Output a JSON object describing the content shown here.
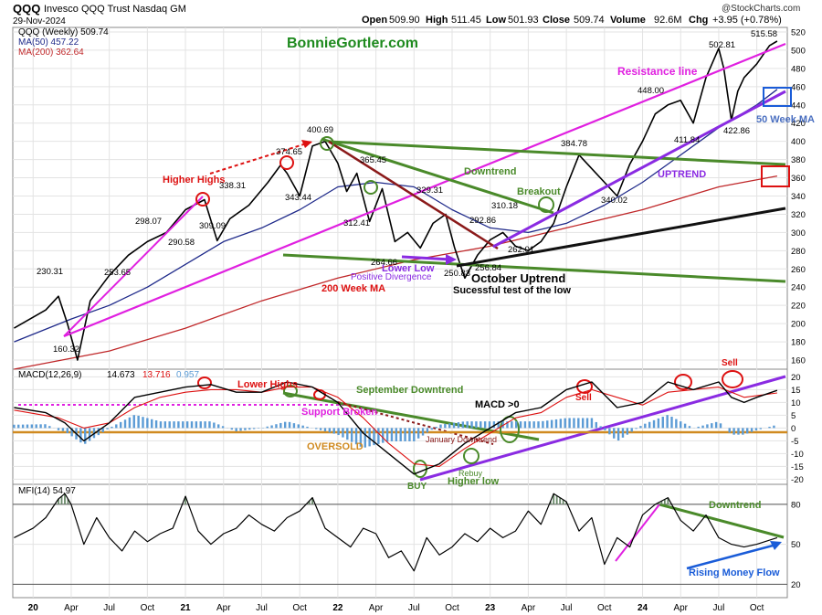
{
  "header": {
    "symbol": "QQQ",
    "name": "Invesco QQQ Trust Nasdaq GM",
    "date": "29-Nov-2024",
    "open_label": "Open",
    "open": "509.90",
    "high_label": "High",
    "high": "511.45",
    "low_label": "Low",
    "low": "501.93",
    "close_label": "Close",
    "close": "509.74",
    "volume_label": "Volume",
    "volume": "92.6M",
    "chg_label": "Chg",
    "chg": "+3.95 (+0.78%)",
    "brand": "@StockCharts.com",
    "watermark": "BonnieGortler.com"
  },
  "legend": {
    "price": "QQQ (Weekly) 509.74",
    "ma50": "MA(50) 457.22",
    "ma200": "MA(200) 362.64",
    "macd_name": "MACD(12,26,9)",
    "macd_v1": "14.673",
    "macd_v2": "13.716",
    "macd_v3": "0.957",
    "mfi": "MFI(14) 54.97"
  },
  "colors": {
    "price": "#000000",
    "ma50": "#1f2a8a",
    "ma200": "#c0282a",
    "magenta": "#e020e0",
    "green": "#4a8a2a",
    "darkred": "#8b1a1a",
    "red": "#dd1111",
    "purple": "#8a2be2",
    "hist": "#5b9bd5",
    "orange": "#d08a20",
    "blue": "#1a5cd8"
  },
  "chart_data": [
    {
      "type": "line",
      "panel": "price",
      "title": "QQQ (Weekly)",
      "y_ticks": [
        160,
        180,
        200,
        220,
        240,
        260,
        280,
        300,
        320,
        340,
        360,
        380,
        400,
        420,
        440,
        460,
        480,
        500,
        520
      ],
      "ylim": [
        150,
        525
      ],
      "x_ticks": [
        "20",
        "Apr",
        "Jul",
        "Oct",
        "21",
        "Apr",
        "Jul",
        "Oct",
        "22",
        "Apr",
        "Jul",
        "Oct",
        "23",
        "Apr",
        "Jul",
        "Oct",
        "24",
        "Apr",
        "Jul",
        "Oct"
      ],
      "x_tick_t": [
        0,
        3,
        6,
        9,
        12,
        15,
        18,
        21,
        24,
        27,
        30,
        33,
        36,
        39,
        42,
        45,
        48,
        51,
        54,
        57
      ],
      "xlim": [
        -1.6,
        59.4
      ],
      "series": [
        {
          "name": "QQQ (Weekly)",
          "x": [
            -1.5,
            1,
            2,
            2.7,
            3.5,
            4.5,
            6,
            7.5,
            9,
            10.5,
            12,
            13.5,
            14.5,
            15.5,
            17,
            18.5,
            19.5,
            20,
            21,
            22,
            23,
            24,
            24.7,
            25.5,
            26.5,
            27.5,
            28.5,
            29.5,
            30.5,
            31.5,
            32.5,
            33.2,
            34,
            35,
            36,
            37,
            38,
            39,
            40,
            41,
            42,
            43,
            44,
            45,
            46,
            47,
            48,
            49,
            50,
            51,
            52,
            53,
            54,
            54.4,
            55,
            55.5,
            56,
            57,
            58,
            58.6
          ],
          "y": [
            195,
            215,
            230,
            200,
            160,
            225,
            253,
            275,
            290,
            300,
            325,
            336,
            291,
            315,
            330,
            355,
            374,
            365,
            340,
            395,
            400,
            376,
            345,
            365,
            312,
            348,
            290,
            300,
            283,
            310,
            320,
            283,
            250,
            275,
            292,
            300,
            285,
            280,
            290,
            310,
            350,
            385,
            370,
            355,
            340,
            375,
            400,
            430,
            440,
            445,
            420,
            470,
            502,
            480,
            423,
            455,
            470,
            485,
            505,
            510
          ]
        },
        {
          "name": "MA(50)",
          "x": [
            -1.5,
            3,
            6,
            9,
            12,
            15,
            18,
            21,
            24,
            27,
            30,
            33,
            36,
            39,
            42,
            45,
            48,
            51,
            54,
            57,
            58.6
          ],
          "y": [
            180,
            205,
            220,
            240,
            265,
            290,
            305,
            325,
            350,
            355,
            350,
            325,
            305,
            300,
            310,
            330,
            355,
            385,
            415,
            440,
            457
          ]
        },
        {
          "name": "MA(200)",
          "x": [
            -1.5,
            6,
            12,
            18,
            24,
            30,
            36,
            42,
            48,
            54,
            58.6
          ],
          "y": [
            150,
            170,
            195,
            225,
            250,
            270,
            285,
            305,
            325,
            350,
            362
          ]
        }
      ],
      "labels": [
        "230.31",
        "160.32",
        "253.65",
        "298.07",
        "290.58",
        "309.09",
        "338.31",
        "343.44",
        "374.65",
        "400.69",
        "365.45",
        "312.41",
        "329.31",
        "264.66",
        "250.83",
        "292.86",
        "310.18",
        "256.84",
        "262.01",
        "384.78",
        "340.02",
        "448.00",
        "411.84",
        "502.81",
        "422.86",
        "515.58"
      ],
      "annotations": [
        "Higher Highs",
        "Resistance line",
        "Downtrend",
        "Breakout",
        "UPTREND",
        "50 Week MA",
        "Lower Low",
        "Positive Divergence",
        "200 Week MA",
        "October Uptrend",
        "Sucessful test of the low"
      ]
    },
    {
      "type": "line",
      "panel": "macd",
      "title": "MACD(12,26,9)",
      "y_ticks": [
        -20,
        -15,
        -10,
        -5,
        0,
        5,
        10,
        15,
        20
      ],
      "ylim": [
        -22,
        23
      ],
      "series": [
        {
          "name": "MACD",
          "x": [
            -1.5,
            1,
            2.5,
            4,
            6,
            8,
            10,
            12,
            14,
            16,
            18,
            20,
            22,
            24,
            25,
            26,
            28,
            30,
            32,
            34,
            36,
            38,
            40,
            42,
            44,
            46,
            48,
            50,
            52,
            54,
            55,
            56,
            57,
            58.6
          ],
          "y": [
            8,
            6,
            2,
            -5,
            2,
            12,
            14,
            16,
            17,
            14,
            14,
            18,
            16,
            10,
            4,
            -2,
            -10,
            -18,
            -14,
            -6,
            0,
            6,
            8,
            15,
            18,
            8,
            10,
            18,
            15,
            18,
            12,
            10,
            12,
            14.7
          ]
        },
        {
          "name": "Signal",
          "x": [
            -1.5,
            2,
            4,
            6,
            8,
            10,
            12,
            14,
            16,
            18,
            20,
            22,
            24,
            26,
            28,
            30,
            32,
            34,
            36,
            38,
            40,
            42,
            44,
            46,
            48,
            50,
            52,
            54,
            56,
            58.6
          ],
          "y": [
            7,
            4,
            0,
            2,
            8,
            12,
            14,
            15,
            15,
            14,
            16,
            16,
            12,
            4,
            -6,
            -14,
            -15,
            -8,
            -2,
            4,
            6,
            12,
            15,
            12,
            9,
            14,
            15,
            16,
            12,
            13.7
          ]
        }
      ],
      "annotations": [
        "Lower Highs",
        "Support Broken",
        "September Downtrend",
        "MACD >0",
        "Sell",
        "OVERSOLD",
        "January Downtrend",
        "Rebuy",
        "BUY",
        "Higher low"
      ]
    },
    {
      "type": "line",
      "panel": "mfi",
      "title": "MFI(14)",
      "y_ticks": [
        20,
        50,
        80
      ],
      "ylim": [
        10,
        95
      ],
      "series": [
        {
          "name": "MFI(14)",
          "x": [
            -1.5,
            0,
            1,
            2,
            2.5,
            3,
            4,
            5,
            6,
            7,
            8,
            9,
            10,
            11,
            12,
            13,
            14,
            15,
            16,
            17,
            18,
            19,
            20,
            21,
            22,
            23,
            24,
            25,
            26,
            27,
            28,
            29,
            30,
            31,
            32,
            33,
            34,
            35,
            36,
            37,
            38,
            39,
            40,
            41,
            42,
            43,
            44,
            45,
            46,
            47,
            48,
            49,
            50,
            51,
            52,
            53,
            54,
            55,
            56,
            57,
            58.6
          ],
          "y": [
            55,
            62,
            70,
            84,
            88,
            80,
            50,
            70,
            55,
            45,
            60,
            52,
            58,
            62,
            86,
            60,
            50,
            58,
            62,
            72,
            65,
            60,
            70,
            75,
            85,
            62,
            55,
            48,
            62,
            58,
            40,
            45,
            30,
            55,
            42,
            48,
            58,
            52,
            62,
            55,
            60,
            75,
            65,
            88,
            82,
            60,
            70,
            35,
            55,
            48,
            72,
            80,
            85,
            68,
            60,
            72,
            55,
            50,
            48,
            50,
            55
          ]
        }
      ],
      "annotations": [
        "Downtrend",
        "Rising Money Flow"
      ]
    }
  ]
}
